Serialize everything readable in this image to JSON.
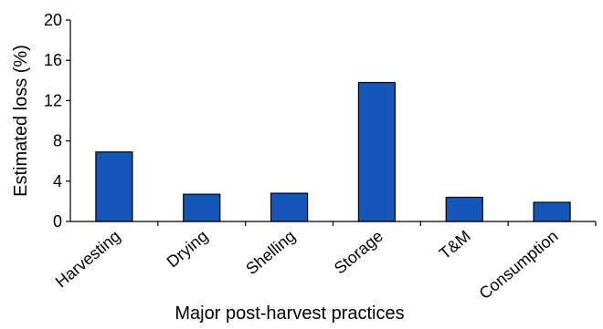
{
  "chart_data": {
    "type": "bar",
    "title": "",
    "xlabel": "Major post-harvest practices",
    "ylabel": "Estimated loss (%)",
    "categories": [
      "Harvesting",
      "Drying",
      "Shelling",
      "Storage",
      "T&M",
      "Consumption"
    ],
    "values": [
      6.9,
      2.7,
      2.8,
      13.8,
      2.4,
      1.9
    ],
    "ylim": [
      0,
      20
    ],
    "yticks": [
      "0",
      "4",
      "8",
      "12",
      "16",
      "20"
    ],
    "grid": false,
    "legend": "none",
    "bar_color": "#1457b8",
    "bar_edge_color": "#000000"
  }
}
